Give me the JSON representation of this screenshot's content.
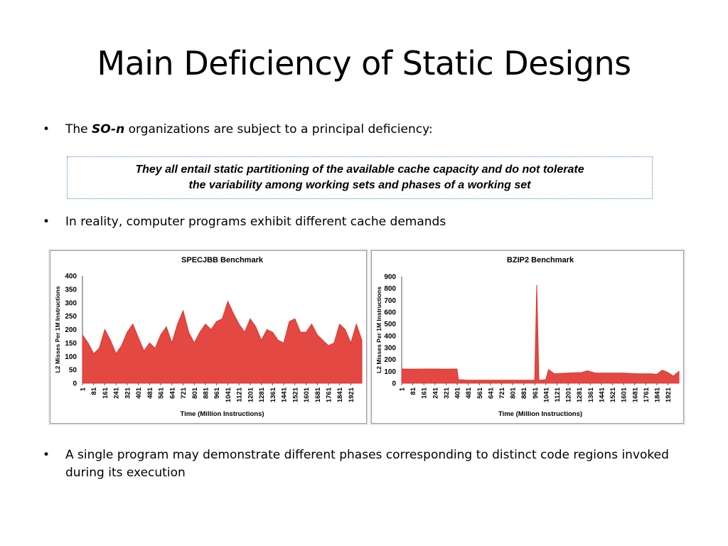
{
  "slide": {
    "title": "Main Deficiency of Static Designs",
    "bullets": [
      {
        "marker": "•",
        "prefix": "The ",
        "emphasis": "SO-n",
        "suffix": " organizations are subject to a principal deficiency:"
      },
      {
        "marker": "•",
        "text": "In reality, computer programs exhibit different cache demands"
      },
      {
        "marker": "•",
        "text": "A single program may demonstrate different phases corresponding to distinct code regions invoked during its execution"
      }
    ],
    "callout": {
      "line1": "They all entail static partitioning of the available cache capacity and do not tolerate",
      "line2": "the variability among working sets and phases of a working set"
    },
    "colors": {
      "series": "#e0342f",
      "frame": "#9a9a9a",
      "callout_border": "#4a8bc2"
    }
  },
  "chart_data": [
    {
      "type": "area",
      "title": "SPECJBB  Benchmark",
      "xlabel": "Time  (Million  Instructions)",
      "ylabel": "L2  Misses  Per  1M  Instructions",
      "ylim": [
        0,
        400
      ],
      "yticks": [
        0,
        50,
        100,
        150,
        200,
        250,
        300,
        350,
        400
      ],
      "xticks": [
        "1",
        "81",
        "161",
        "241",
        "321",
        "401",
        "481",
        "561",
        "641",
        "721",
        "801",
        "881",
        "961",
        "1041",
        "1121",
        "1201",
        "1281",
        "1361",
        "1441",
        "1521",
        "1601",
        "1681",
        "1761",
        "1841",
        "1921"
      ],
      "xrange": [
        1,
        2000
      ],
      "series": [
        {
          "color": "#e0342f",
          "x": [
            1,
            41,
            81,
            121,
            161,
            201,
            241,
            281,
            321,
            361,
            401,
            441,
            481,
            521,
            561,
            601,
            641,
            681,
            721,
            761,
            801,
            841,
            881,
            921,
            961,
            1001,
            1041,
            1081,
            1121,
            1161,
            1201,
            1241,
            1281,
            1321,
            1361,
            1401,
            1441,
            1481,
            1521,
            1561,
            1601,
            1641,
            1681,
            1721,
            1761,
            1801,
            1841,
            1881,
            1921,
            1961,
            2000
          ],
          "y": [
            180,
            150,
            110,
            130,
            200,
            160,
            110,
            140,
            190,
            220,
            170,
            120,
            150,
            130,
            180,
            210,
            150,
            220,
            270,
            190,
            150,
            190,
            220,
            200,
            230,
            240,
            305,
            260,
            220,
            190,
            240,
            210,
            160,
            200,
            190,
            160,
            150,
            230,
            240,
            190,
            190,
            220,
            180,
            160,
            140,
            150,
            220,
            200,
            150,
            220,
            160
          ]
        }
      ]
    },
    {
      "type": "area",
      "title": "BZIP2  Benchmark",
      "xlabel": "Time  (Million  Instructions)",
      "ylabel": "L2  Misses  Per  1M  Instructions",
      "ylim": [
        0,
        900
      ],
      "yticks": [
        0,
        100,
        200,
        300,
        400,
        500,
        600,
        700,
        800,
        900
      ],
      "xticks": [
        "1",
        "81",
        "161",
        "241",
        "321",
        "401",
        "481",
        "561",
        "641",
        "721",
        "801",
        "881",
        "961",
        "1041",
        "1121",
        "1201",
        "1281",
        "1361",
        "1441",
        "1521",
        "1601",
        "1681",
        "1761",
        "1841",
        "1921"
      ],
      "xrange": [
        1,
        2000
      ],
      "series": [
        {
          "color": "#e0342f",
          "x": [
            1,
            80,
            160,
            240,
            320,
            400,
            410,
            480,
            560,
            640,
            720,
            800,
            880,
            960,
            975,
            990,
            1000,
            1040,
            1060,
            1100,
            1200,
            1300,
            1340,
            1400,
            1500,
            1600,
            1700,
            1800,
            1840,
            1880,
            1920,
            1960,
            2000
          ],
          "y": [
            120,
            118,
            120,
            120,
            118,
            120,
            30,
            25,
            25,
            25,
            25,
            25,
            25,
            25,
            830,
            25,
            25,
            30,
            115,
            80,
            85,
            90,
            105,
            85,
            85,
            85,
            80,
            80,
            75,
            110,
            90,
            60,
            100
          ]
        }
      ]
    }
  ]
}
